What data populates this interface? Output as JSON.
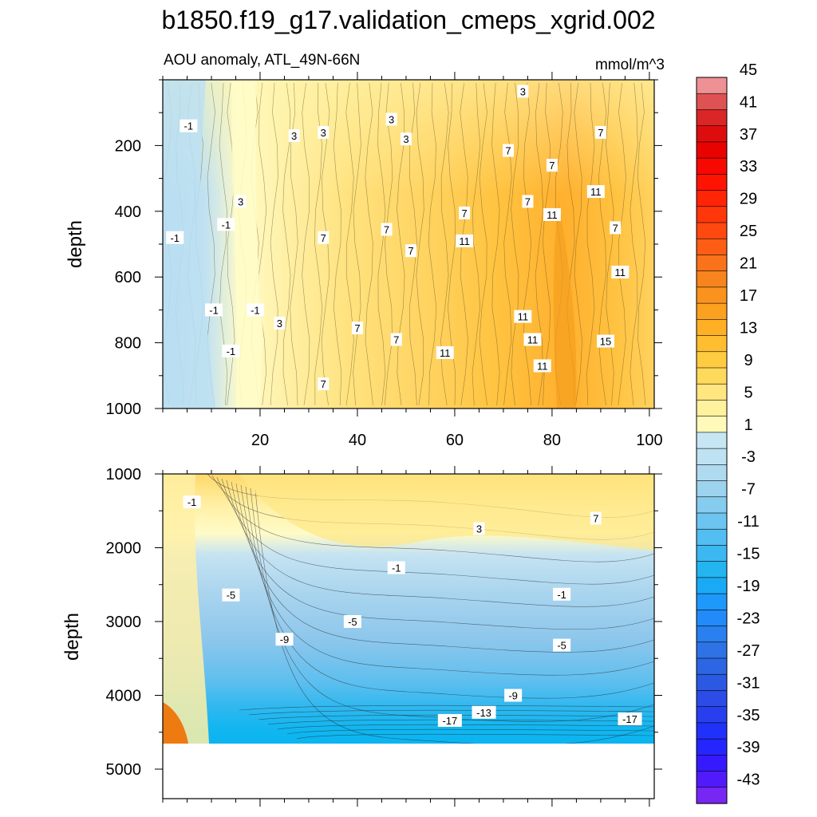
{
  "chart_data": {
    "type": "heatmap",
    "title": "b1850.f19_g17.validation_cmeps_xgrid.002",
    "subtitle": "AOU anomaly, ATL_49N-66N",
    "units": "mmol/m^3",
    "x_range": [
      0,
      101
    ],
    "x_ticks": [
      "20",
      "40",
      "60",
      "80",
      "100"
    ],
    "colorbar": {
      "levels": [
        -45,
        -43,
        -41,
        -39,
        -37,
        -35,
        -33,
        -31,
        -29,
        -27,
        -25,
        -23,
        -21,
        -19,
        -17,
        -15,
        -13,
        -11,
        -9,
        -7,
        -5,
        -3,
        -1,
        1,
        3,
        5,
        7,
        9,
        11,
        13,
        15,
        17,
        19,
        21,
        23,
        25,
        27,
        29,
        31,
        33,
        35,
        37,
        39,
        41,
        43,
        45
      ],
      "labels": [
        "45",
        "41",
        "37",
        "33",
        "29",
        "25",
        "21",
        "17",
        "13",
        "9",
        "5",
        "1",
        "-3",
        "-7",
        "-11",
        "-15",
        "-19",
        "-23",
        "-27",
        "-31",
        "-35",
        "-39",
        "-43"
      ],
      "colors": [
        "#b8c8ec",
        "#9dc1e6",
        "#c3e3f2",
        "#ffffc6",
        "#fff3a4",
        "#ffe88a",
        "#ffd86a",
        "#ffc84a",
        "#ffb73a",
        "#ffa62a",
        "#f99a1e",
        "#f08a16",
        "#e57a12",
        "#ff7040",
        "#ff5020",
        "#ff3010",
        "#ff1010",
        "#e00000",
        "#cc0000",
        "#ff0000",
        "#d83030",
        "#e85050",
        "#f07070",
        "#f4a0a0",
        "#f8b4b8"
      ]
    },
    "panels": [
      {
        "name": "upper",
        "ylabel": "depth",
        "y_range": [
          0,
          1000
        ],
        "y_ticks": [
          "200",
          "400",
          "600",
          "800",
          "1000"
        ],
        "contour_labels": [
          {
            "text": "-1",
            "x": 5.3,
            "y": 140
          },
          {
            "text": "-1",
            "x": 2.5,
            "y": 480
          },
          {
            "text": "-1",
            "x": 13,
            "y": 440
          },
          {
            "text": "-1",
            "x": 10.5,
            "y": 700
          },
          {
            "text": "-1",
            "x": 19,
            "y": 700
          },
          {
            "text": "-1",
            "x": 14,
            "y": 825
          },
          {
            "text": "3",
            "x": 27,
            "y": 170
          },
          {
            "text": "3",
            "x": 33,
            "y": 160
          },
          {
            "text": "3",
            "x": 47,
            "y": 120
          },
          {
            "text": "3",
            "x": 50,
            "y": 180
          },
          {
            "text": "3",
            "x": 74,
            "y": 35
          },
          {
            "text": "3",
            "x": 16,
            "y": 370
          },
          {
            "text": "3",
            "x": 24,
            "y": 740
          },
          {
            "text": "7",
            "x": 33,
            "y": 480
          },
          {
            "text": "7",
            "x": 46,
            "y": 455
          },
          {
            "text": "7",
            "x": 51,
            "y": 520
          },
          {
            "text": "7",
            "x": 62,
            "y": 405
          },
          {
            "text": "7",
            "x": 71,
            "y": 215
          },
          {
            "text": "7",
            "x": 80,
            "y": 260
          },
          {
            "text": "7",
            "x": 75,
            "y": 370
          },
          {
            "text": "7",
            "x": 90,
            "y": 160
          },
          {
            "text": "7",
            "x": 93,
            "y": 450
          },
          {
            "text": "7",
            "x": 40,
            "y": 755
          },
          {
            "text": "7",
            "x": 48,
            "y": 790
          },
          {
            "text": "7",
            "x": 33,
            "y": 925
          },
          {
            "text": "11",
            "x": 62,
            "y": 490
          },
          {
            "text": "11",
            "x": 80,
            "y": 410
          },
          {
            "text": "11",
            "x": 89,
            "y": 340
          },
          {
            "text": "11",
            "x": 94,
            "y": 585
          },
          {
            "text": "11",
            "x": 74,
            "y": 720
          },
          {
            "text": "11",
            "x": 76,
            "y": 790
          },
          {
            "text": "11",
            "x": 58,
            "y": 830
          },
          {
            "text": "11",
            "x": 78,
            "y": 870
          },
          {
            "text": "15",
            "x": 91,
            "y": 795
          }
        ]
      },
      {
        "name": "lower",
        "ylabel": "depth",
        "y_range": [
          1000,
          5400
        ],
        "y_ticks": [
          "1000",
          "2000",
          "3000",
          "4000",
          "5000"
        ],
        "data_bottom_depth": 4600,
        "contour_labels": [
          {
            "text": "-1",
            "x": 6,
            "y": 1380
          },
          {
            "text": "-1",
            "x": 48,
            "y": 2270
          },
          {
            "text": "-1",
            "x": 82,
            "y": 2630
          },
          {
            "text": "3",
            "x": 65,
            "y": 1740
          },
          {
            "text": "7",
            "x": 89,
            "y": 1600
          },
          {
            "text": "-5",
            "x": 14,
            "y": 2640
          },
          {
            "text": "-5",
            "x": 39,
            "y": 3000
          },
          {
            "text": "-5",
            "x": 82,
            "y": 3320
          },
          {
            "text": "-9",
            "x": 25,
            "y": 3240
          },
          {
            "text": "-9",
            "x": 72,
            "y": 4000
          },
          {
            "text": "-13",
            "x": 66,
            "y": 4230
          },
          {
            "text": "-17",
            "x": 59,
            "y": 4340
          },
          {
            "text": "-17",
            "x": 96,
            "y": 4320
          }
        ]
      }
    ]
  }
}
